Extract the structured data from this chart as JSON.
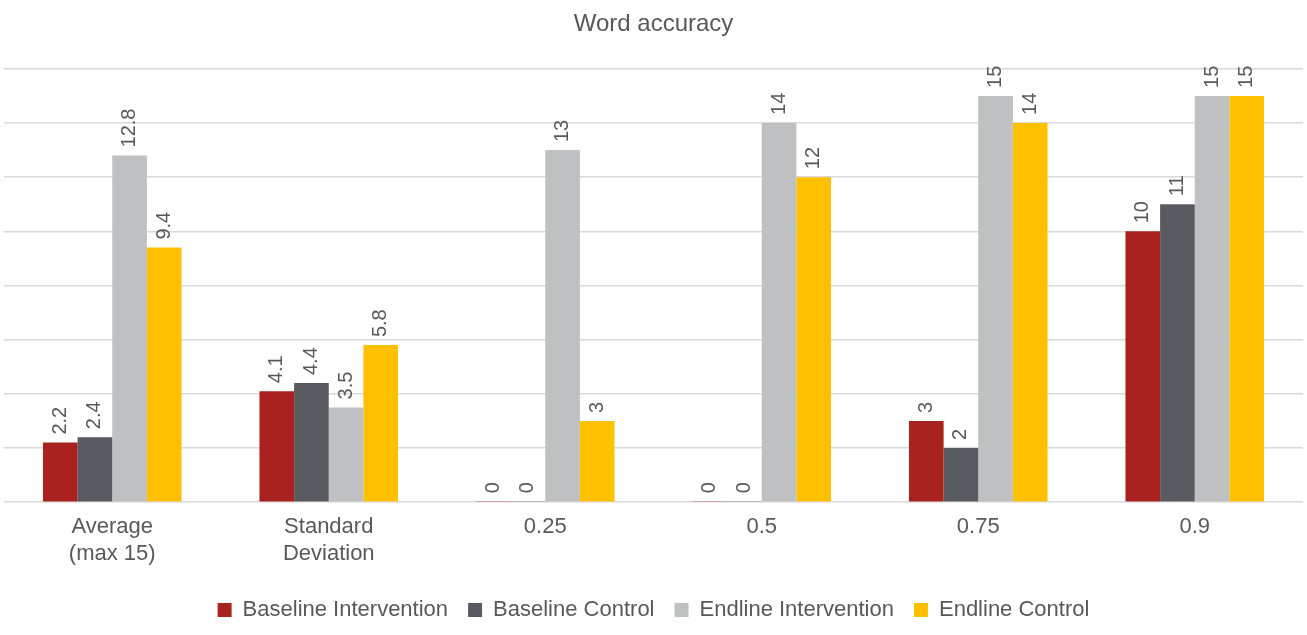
{
  "chart_data": {
    "type": "bar",
    "title": "Word accuracy",
    "categories": [
      "Average (max 15)",
      "Standard Deviation",
      "0.25",
      "0.5",
      "0.75",
      "0.9"
    ],
    "series": [
      {
        "name": "Baseline Intervention",
        "color": "#aa2220",
        "values": [
          2.2,
          4.1,
          0,
          0,
          3,
          10
        ]
      },
      {
        "name": "Baseline Control",
        "color": "#5a5b60",
        "values": [
          2.4,
          4.4,
          0,
          0,
          2,
          11
        ]
      },
      {
        "name": "Endline Intervention",
        "color": "#bfc0c2",
        "values": [
          12.8,
          3.5,
          13,
          14,
          15,
          15
        ]
      },
      {
        "name": "Endline Control",
        "color": "#ffc000",
        "values": [
          9.4,
          5.8,
          3,
          12,
          14,
          15
        ]
      }
    ],
    "ylim": [
      0,
      16
    ],
    "yticks": [
      {
        "value": 0,
        "label": null
      },
      {
        "value": 2,
        "label": null
      },
      {
        "value": 4,
        "label": null
      },
      {
        "value": 6,
        "label": null
      },
      {
        "value": 8,
        "label": null
      },
      {
        "value": 10,
        "label": null
      },
      {
        "value": 12,
        "label": null
      },
      {
        "value": 14,
        "label": null
      },
      {
        "value": 16,
        "label": null
      }
    ],
    "tick_labels": "x",
    "grid": "y",
    "legend": "bottom",
    "data_labels": true
  }
}
